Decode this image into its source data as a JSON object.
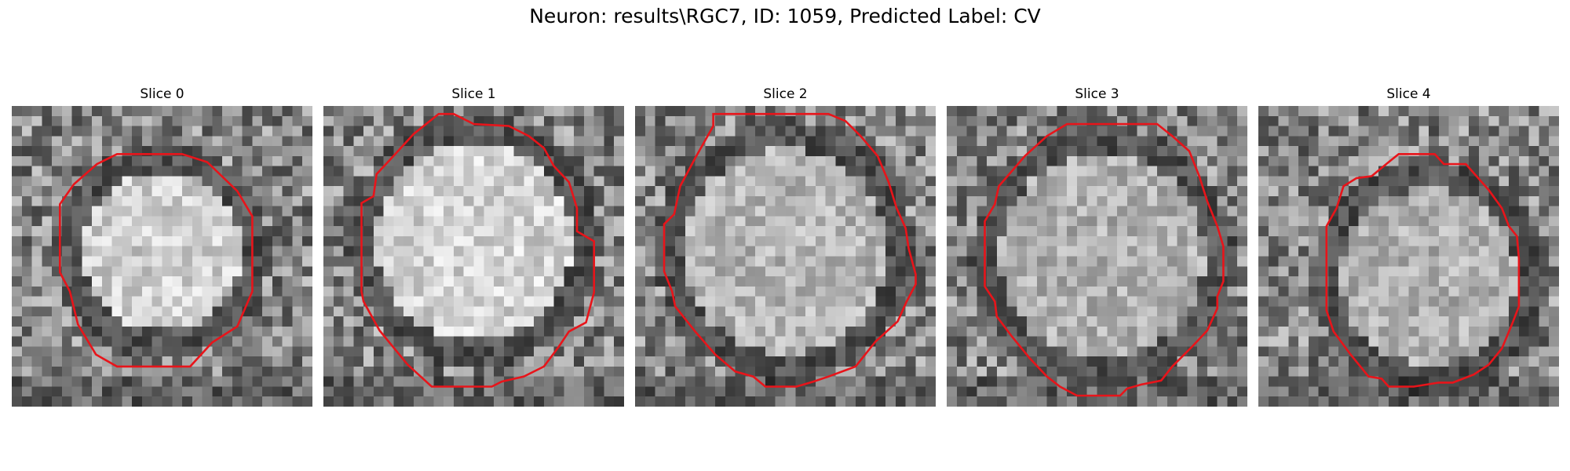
{
  "figure": {
    "title": "Neuron: results\\RGC7, ID: 1059, Predicted Label: CV"
  },
  "panels": [
    {
      "title": "Slice 0"
    },
    {
      "title": "Slice 1"
    },
    {
      "title": "Slice 2"
    },
    {
      "title": "Slice 3"
    },
    {
      "title": "Slice 4"
    }
  ],
  "colors": {
    "contour": "#e8141a",
    "background": "#ffffff"
  }
}
